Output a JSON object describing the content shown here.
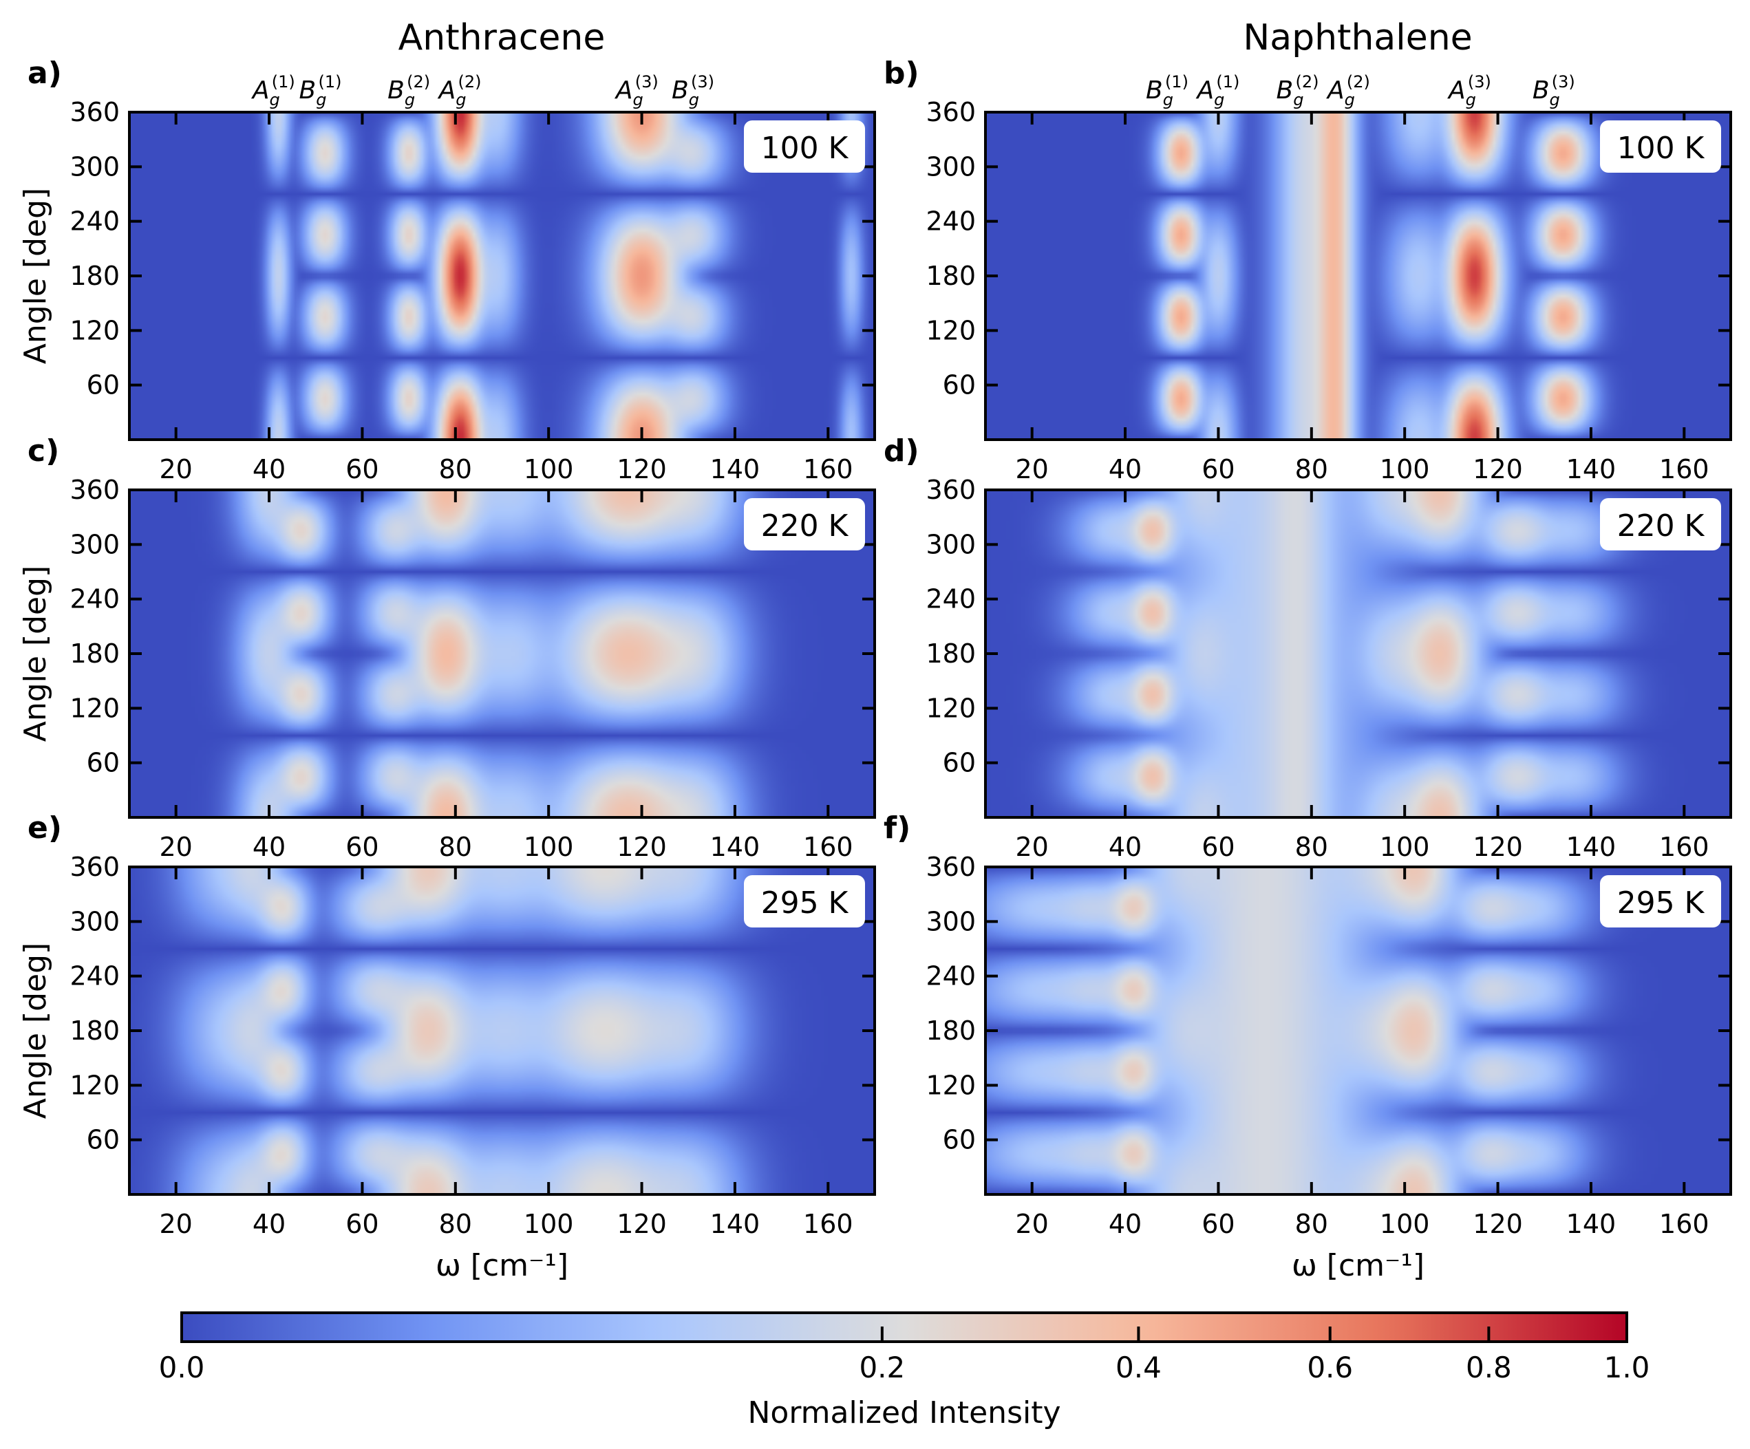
{
  "figure": {
    "column_titles": [
      "Anthracene",
      "Naphthalene"
    ],
    "colorbar": {
      "label": "Normalized Intensity",
      "ticks": [
        "0.0",
        "0.2",
        "0.4",
        "0.6",
        "0.8",
        "1.0"
      ],
      "tick_values": [
        0.0,
        0.2,
        0.4,
        0.6,
        0.8,
        1.0
      ],
      "colormap": "coolwarm",
      "colors": [
        "#3b4cc0",
        "#6f92f3",
        "#aac7fd",
        "#dddcdc",
        "#f7b89c",
        "#e7745b",
        "#b40426"
      ]
    }
  },
  "chart_data": [
    {
      "type": "heatmap",
      "panel_label": "a)",
      "compound": "Anthracene",
      "temperature_label": "100 K",
      "xlabel": "",
      "ylabel": "Angle [deg]",
      "xlim": [
        10,
        170
      ],
      "ylim": [
        0,
        360
      ],
      "xticks": [
        20,
        40,
        60,
        80,
        100,
        120,
        140,
        160
      ],
      "yticks": [
        60,
        120,
        180,
        240,
        300,
        360
      ],
      "mode_labels": [
        {
          "symbol": "A",
          "sub": "g",
          "sup": "(1)",
          "x": 41
        },
        {
          "symbol": "B",
          "sub": "g",
          "sup": "(1)",
          "x": 51
        },
        {
          "symbol": "B",
          "sub": "g",
          "sup": "(2)",
          "x": 70
        },
        {
          "symbol": "A",
          "sub": "g",
          "sup": "(2)",
          "x": 81
        },
        {
          "symbol": "A",
          "sub": "g",
          "sup": "(3)",
          "x": 119
        },
        {
          "symbol": "B",
          "sub": "g",
          "sup": "(3)",
          "x": 131
        }
      ],
      "peaks": [
        {
          "x": 42,
          "width": 1.3,
          "intensity": 0.14,
          "type": "A"
        },
        {
          "x": 52,
          "width": 2.2,
          "intensity": 0.24,
          "type": "B"
        },
        {
          "x": 70,
          "width": 2.0,
          "intensity": 0.26,
          "type": "B"
        },
        {
          "x": 81,
          "width": 2.5,
          "intensity": 0.88,
          "type": "A"
        },
        {
          "x": 89,
          "width": 2.5,
          "intensity": 0.1,
          "type": "A"
        },
        {
          "x": 120,
          "width": 4.5,
          "intensity": 0.52,
          "type": "A"
        },
        {
          "x": 131,
          "width": 3.5,
          "intensity": 0.16,
          "type": "B"
        },
        {
          "x": 165,
          "width": 1.2,
          "intensity": 0.08,
          "type": "A"
        }
      ]
    },
    {
      "type": "heatmap",
      "panel_label": "b)",
      "compound": "Naphthalene",
      "temperature_label": "100 K",
      "xlabel": "",
      "ylabel": "",
      "xlim": [
        10,
        170
      ],
      "ylim": [
        0,
        360
      ],
      "xticks": [
        20,
        40,
        60,
        80,
        100,
        120,
        140,
        160
      ],
      "yticks": [
        60,
        120,
        180,
        240,
        300,
        360
      ],
      "mode_labels": [
        {
          "symbol": "B",
          "sub": "g",
          "sup": "(1)",
          "x": 49
        },
        {
          "symbol": "A",
          "sub": "g",
          "sup": "(1)",
          "x": 60
        },
        {
          "symbol": "B",
          "sub": "g",
          "sup": "(2)",
          "x": 77
        },
        {
          "symbol": "A",
          "sub": "g",
          "sup": "(2)",
          "x": 88
        },
        {
          "symbol": "A",
          "sub": "g",
          "sup": "(3)",
          "x": 114
        },
        {
          "symbol": "B",
          "sub": "g",
          "sup": "(3)",
          "x": 132
        }
      ],
      "peaks": [
        {
          "x": 52,
          "width": 2.3,
          "intensity": 0.45,
          "type": "B"
        },
        {
          "x": 60,
          "width": 2.0,
          "intensity": 0.12,
          "type": "A"
        },
        {
          "x": 79,
          "width": 3.5,
          "intensity": 0.16,
          "type": "iso"
        },
        {
          "x": 85,
          "width": 2.3,
          "intensity": 0.36,
          "type": "iso"
        },
        {
          "x": 103,
          "width": 3.5,
          "intensity": 0.1,
          "type": "A"
        },
        {
          "x": 115,
          "width": 3.0,
          "intensity": 0.82,
          "type": "A"
        },
        {
          "x": 134,
          "width": 3.0,
          "intensity": 0.45,
          "type": "B"
        }
      ]
    },
    {
      "type": "heatmap",
      "panel_label": "c)",
      "compound": "Anthracene",
      "temperature_label": "220 K",
      "xlabel": "",
      "ylabel": "Angle [deg]",
      "xlim": [
        10,
        170
      ],
      "ylim": [
        0,
        360
      ],
      "xticks": [
        20,
        40,
        60,
        80,
        100,
        120,
        140,
        160
      ],
      "yticks": [
        60,
        120,
        180,
        240,
        300,
        360
      ],
      "peaks": [
        {
          "x": 40,
          "width": 3.5,
          "intensity": 0.14,
          "type": "A"
        },
        {
          "x": 47,
          "width": 3.0,
          "intensity": 0.24,
          "type": "B"
        },
        {
          "x": 67,
          "width": 3.5,
          "intensity": 0.16,
          "type": "B"
        },
        {
          "x": 78,
          "width": 4.5,
          "intensity": 0.38,
          "type": "A"
        },
        {
          "x": 92,
          "width": 5.5,
          "intensity": 0.1,
          "type": "A"
        },
        {
          "x": 117,
          "width": 8.0,
          "intensity": 0.35,
          "type": "A"
        },
        {
          "x": 132,
          "width": 5.0,
          "intensity": 0.12,
          "type": "A"
        }
      ]
    },
    {
      "type": "heatmap",
      "panel_label": "d)",
      "compound": "Naphthalene",
      "temperature_label": "220 K",
      "xlabel": "",
      "ylabel": "",
      "xlim": [
        10,
        170
      ],
      "ylim": [
        0,
        360
      ],
      "xticks": [
        20,
        40,
        60,
        80,
        100,
        120,
        140,
        160
      ],
      "yticks": [
        60,
        120,
        180,
        240,
        300,
        360
      ],
      "peaks": [
        {
          "x": 38,
          "width": 5.0,
          "intensity": 0.1,
          "type": "B"
        },
        {
          "x": 46,
          "width": 2.8,
          "intensity": 0.3,
          "type": "B"
        },
        {
          "x": 56,
          "width": 4.0,
          "intensity": 0.08,
          "type": "A"
        },
        {
          "x": 70,
          "width": 12.0,
          "intensity": 0.11,
          "type": "iso"
        },
        {
          "x": 77,
          "width": 4.0,
          "intensity": 0.1,
          "type": "iso"
        },
        {
          "x": 98,
          "width": 5.0,
          "intensity": 0.12,
          "type": "A"
        },
        {
          "x": 108,
          "width": 4.5,
          "intensity": 0.32,
          "type": "A"
        },
        {
          "x": 124,
          "width": 4.5,
          "intensity": 0.18,
          "type": "B"
        },
        {
          "x": 136,
          "width": 5.0,
          "intensity": 0.08,
          "type": "B"
        }
      ]
    },
    {
      "type": "heatmap",
      "panel_label": "e)",
      "compound": "Anthracene",
      "temperature_label": "295 K",
      "xlabel": "ω [cm⁻¹]",
      "ylabel": "Angle [deg]",
      "xlim": [
        10,
        170
      ],
      "ylim": [
        0,
        360
      ],
      "xticks": [
        20,
        40,
        60,
        80,
        100,
        120,
        140,
        160
      ],
      "yticks": [
        60,
        120,
        180,
        240,
        300,
        360
      ],
      "peaks": [
        {
          "x": 30,
          "width": 5.0,
          "intensity": 0.07,
          "type": "A"
        },
        {
          "x": 37,
          "width": 4.0,
          "intensity": 0.13,
          "type": "A"
        },
        {
          "x": 43,
          "width": 3.0,
          "intensity": 0.21,
          "type": "B"
        },
        {
          "x": 63,
          "width": 4.5,
          "intensity": 0.14,
          "type": "B"
        },
        {
          "x": 74,
          "width": 5.5,
          "intensity": 0.3,
          "type": "A"
        },
        {
          "x": 90,
          "width": 6.0,
          "intensity": 0.1,
          "type": "A"
        },
        {
          "x": 112,
          "width": 9.0,
          "intensity": 0.22,
          "type": "A"
        },
        {
          "x": 130,
          "width": 6.0,
          "intensity": 0.1,
          "type": "A"
        }
      ]
    },
    {
      "type": "heatmap",
      "panel_label": "f)",
      "compound": "Naphthalene",
      "temperature_label": "295 K",
      "xlabel": "ω [cm⁻¹]",
      "ylabel": "",
      "xlim": [
        10,
        170
      ],
      "ylim": [
        0,
        360
      ],
      "xticks": [
        20,
        40,
        60,
        80,
        100,
        120,
        140,
        160
      ],
      "yticks": [
        60,
        120,
        180,
        240,
        300,
        360
      ],
      "peaks": [
        {
          "x": 22,
          "width": 8.0,
          "intensity": 0.09,
          "type": "B"
        },
        {
          "x": 34,
          "width": 5.0,
          "intensity": 0.1,
          "type": "B"
        },
        {
          "x": 42,
          "width": 3.0,
          "intensity": 0.24,
          "type": "B"
        },
        {
          "x": 52,
          "width": 5.0,
          "intensity": 0.08,
          "type": "A"
        },
        {
          "x": 70,
          "width": 12.0,
          "intensity": 0.19,
          "type": "iso"
        },
        {
          "x": 95,
          "width": 6.0,
          "intensity": 0.12,
          "type": "A"
        },
        {
          "x": 103,
          "width": 4.5,
          "intensity": 0.26,
          "type": "A"
        },
        {
          "x": 118,
          "width": 4.5,
          "intensity": 0.15,
          "type": "B"
        },
        {
          "x": 128,
          "width": 5.5,
          "intensity": 0.09,
          "type": "B"
        }
      ]
    }
  ]
}
